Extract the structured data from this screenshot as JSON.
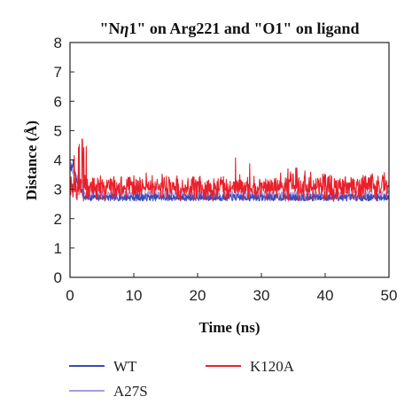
{
  "chart_data": {
    "type": "line",
    "title_parts": [
      "\"N",
      "η",
      "1\" on Arg221 and \"O1\" on ligand"
    ],
    "xlabel": "Time (ns)",
    "ylabel": "Distance (Å)",
    "xlim": [
      0,
      50
    ],
    "ylim": [
      0,
      8
    ],
    "x_ticks": [
      0,
      10,
      20,
      30,
      40,
      50
    ],
    "y_ticks": [
      0,
      1,
      2,
      3,
      4,
      5,
      6,
      7,
      8
    ],
    "grid": false,
    "legend_position": "bottom",
    "series": [
      {
        "name": "WT",
        "color": "#3b4bb8",
        "baseline": 2.72,
        "noise": 0.12,
        "points_approx": [
          [
            0,
            3.6
          ],
          [
            0.5,
            3.9
          ],
          [
            1.0,
            3.3
          ],
          [
            2,
            2.9
          ],
          [
            5,
            2.7
          ],
          [
            10,
            2.72
          ],
          [
            20,
            2.7
          ],
          [
            30,
            2.7
          ],
          [
            40,
            2.72
          ],
          [
            50,
            2.72
          ]
        ]
      },
      {
        "name": "A27S",
        "color": "#a89be0",
        "baseline": 2.8,
        "noise": 0.15,
        "points_approx": [
          [
            0,
            4.0
          ],
          [
            0.3,
            3.7
          ],
          [
            1.0,
            3.4
          ],
          [
            3,
            2.9
          ],
          [
            10,
            2.8
          ],
          [
            20,
            2.8
          ],
          [
            30,
            2.78
          ],
          [
            40,
            2.8
          ],
          [
            50,
            2.8
          ]
        ]
      },
      {
        "name": "K120A",
        "color": "#e8202a",
        "baseline": 2.95,
        "noise": 0.3,
        "points_approx": [
          [
            0,
            3.0
          ],
          [
            0.5,
            4.3
          ],
          [
            2.2,
            4.85
          ],
          [
            5,
            3.1
          ],
          [
            10,
            3.0
          ],
          [
            15,
            3.0
          ],
          [
            20,
            3.0
          ],
          [
            24,
            2.9
          ],
          [
            26.5,
            4.7
          ],
          [
            28,
            4.0
          ],
          [
            30,
            3.3
          ],
          [
            35,
            3.8
          ],
          [
            40,
            3.5
          ],
          [
            45,
            3.4
          ],
          [
            50,
            3.7
          ]
        ]
      }
    ]
  },
  "legend": [
    {
      "label": "WT",
      "color": "#3b4bb8"
    },
    {
      "label": "K120A",
      "color": "#e8202a"
    },
    {
      "label": "A27S",
      "color": "#a89be0"
    }
  ]
}
